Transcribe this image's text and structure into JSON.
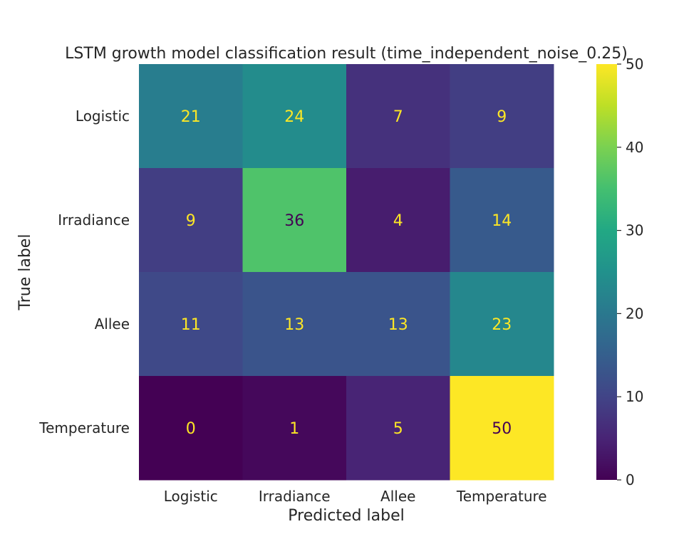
{
  "chart_data": {
    "type": "heatmap",
    "title": "LSTM growth model classification result (time_independent_noise_0.25)",
    "xlabel": "Predicted label",
    "ylabel": "True label",
    "x_categories": [
      "Logistic",
      "Irradiance",
      "Allee",
      "Temperature"
    ],
    "y_categories": [
      "Logistic",
      "Irradiance",
      "Allee",
      "Temperature"
    ],
    "matrix": [
      [
        21,
        24,
        7,
        9
      ],
      [
        9,
        36,
        4,
        14
      ],
      [
        11,
        13,
        13,
        23
      ],
      [
        0,
        1,
        5,
        50
      ]
    ],
    "colormap": "viridis",
    "vmin": 0,
    "vmax": 50,
    "colorbar_ticks": [
      "0",
      "10",
      "20",
      "30",
      "40",
      "50"
    ],
    "grid": false,
    "text_colors": {
      "on_dark": "#fde725",
      "on_light": "#440154"
    }
  }
}
